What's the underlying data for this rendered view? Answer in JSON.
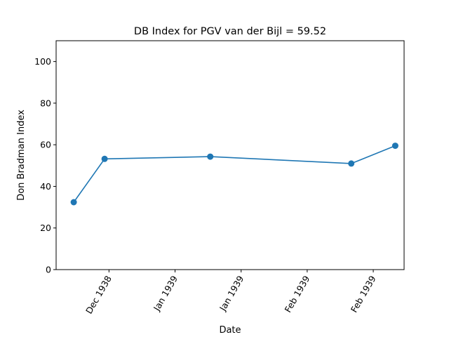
{
  "chart_data": {
    "type": "line",
    "title": "DB Index for PGV van der Bijl = 59.52",
    "xlabel": "Date",
    "ylabel": "Don Bradman Index",
    "ylim": [
      0,
      110
    ],
    "yticks": [
      0,
      20,
      40,
      60,
      80,
      100
    ],
    "xlim": [
      "1938-12-16",
      "1939-03-05"
    ],
    "xticks": [
      {
        "date": "1938-12-28",
        "label": "Dec 1938"
      },
      {
        "date": "1939-01-12",
        "label": "Jan 1939"
      },
      {
        "date": "1939-01-27",
        "label": "Jan 1939"
      },
      {
        "date": "1939-02-11",
        "label": "Feb 1939"
      },
      {
        "date": "1939-02-26",
        "label": "Feb 1939"
      }
    ],
    "series": [
      {
        "x": [
          "1938-12-20",
          "1938-12-27",
          "1939-01-20",
          "1939-02-21",
          "1939-03-03"
        ],
        "values": [
          32.4,
          53.2,
          54.3,
          51.0,
          59.52
        ]
      }
    ],
    "grid": false,
    "color": "#1f77b4"
  }
}
